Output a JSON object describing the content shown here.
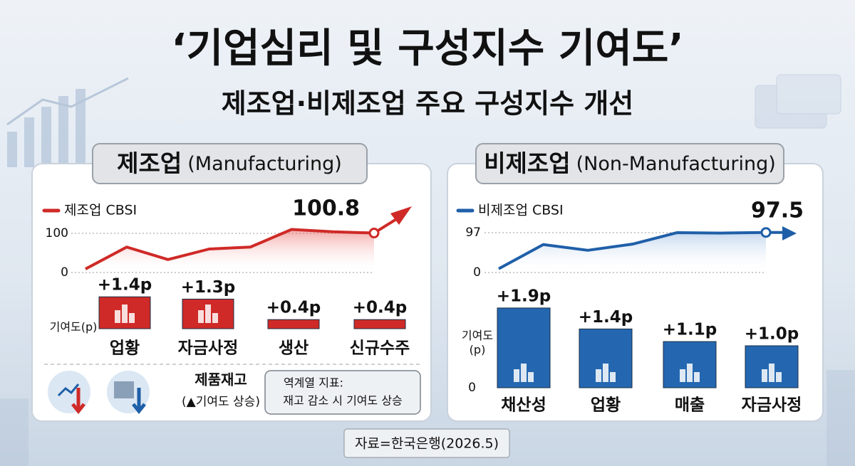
{
  "header": {
    "title": "‘기업심리 및 구성지수 기여도’",
    "subtitle": "제조업·비제조업 주요 구성지수 개선"
  },
  "panels": [
    {
      "name": "제조업",
      "english": "(Manufacturing)"
    },
    {
      "name": "비제조업",
      "english": "(Non-Manufacturing)"
    }
  ],
  "chart_data": [
    {
      "type": "line",
      "series": [
        {
          "name": "제조업 CBSI",
          "color": "#cf2a27",
          "values": [
            9,
            65,
            33,
            60,
            65,
            110,
            104,
            100.8
          ]
        }
      ],
      "ylim": [
        0,
        120
      ],
      "yticks": [
        0,
        100
      ],
      "grid": true
    },
    {
      "type": "bar",
      "axis_label": "기여도(p)",
      "categories": [
        "업황",
        "자금사정",
        "생산",
        "신규수주"
      ],
      "values": [
        1.4,
        1.3,
        0.4,
        0.4
      ],
      "value_labels": [
        "+1.4p",
        "+1.3p",
        "+0.4p",
        "+0.4p"
      ],
      "color": "#cf2a27",
      "ylim": [
        0,
        1.5
      ]
    },
    {
      "type": "line",
      "series": [
        {
          "name": "비제조업 CBSI",
          "color": "#1f5fa8",
          "values": [
            9,
            68,
            54,
            69,
            97,
            96,
            97.5
          ]
        }
      ],
      "ylim": [
        0,
        110
      ],
      "yticks": [
        0,
        97
      ],
      "grid": true
    },
    {
      "type": "bar",
      "axis_label": "기여도\n(p)",
      "categories": [
        "채산성",
        "업황",
        "매출",
        "자금사정"
      ],
      "values": [
        1.9,
        1.4,
        1.1,
        1.0
      ],
      "value_labels": [
        "+1.9p",
        "+1.4p",
        "+1.1p",
        "+1.0p"
      ],
      "color": "#2467b0",
      "ylim": [
        0,
        2
      ],
      "yticks": [
        0
      ]
    }
  ],
  "note": {
    "title": "제품재고",
    "subtitle": "(▲기여도 상승)",
    "box_title": "역계열 지표:",
    "box_text": "재고 감소 시 기여도 상승"
  },
  "source": "자료=한국은행(2026.5)"
}
